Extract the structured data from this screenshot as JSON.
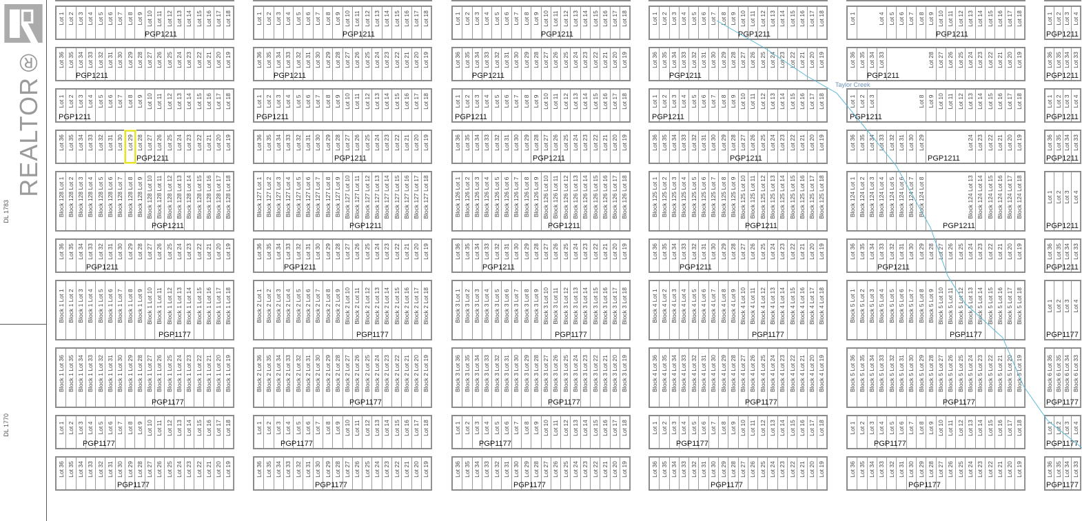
{
  "watermark": {
    "brand": "REALTOR®"
  },
  "district_lots": [
    "DL 1783",
    "DL 1770"
  ],
  "creek": {
    "label": "Taylor Creek",
    "color": "#5bb8d8"
  },
  "highlight": {
    "lot": "Lot 29",
    "plan": "PGP1211",
    "color": "#e6e22a"
  },
  "lot_labels": {
    "north_half": [
      "Lot 1",
      "Lot 2",
      "Lot 3",
      "Lot 4",
      "Lot 5",
      "Lot 6",
      "Lot 7",
      "Lot 8",
      "Lot 9",
      "Lot 10",
      "Lot 11",
      "Lot 12",
      "Lot 13",
      "Lot 14",
      "Lot 15",
      "Lot 16",
      "Lot 17",
      "Lot 18"
    ],
    "south_half": [
      "Lot 36",
      "Lot 35",
      "Lot 34",
      "Lot 33",
      "Lot 32",
      "Lot 31",
      "Lot 30",
      "Lot 29",
      "Lot 28",
      "Lot 27",
      "Lot 26",
      "Lot 25",
      "Lot 24",
      "Lot 23",
      "Lot 22",
      "Lot 21",
      "Lot 20",
      "Lot 19"
    ]
  },
  "rows": [
    {
      "half": "south_half",
      "plan": "",
      "prefixes": [
        "",
        "",
        "",
        "",
        "",
        ""
      ]
    },
    {
      "half": "north_half",
      "plan": "PGP1211",
      "prefixes": [
        "",
        "",
        "",
        "",
        "",
        ""
      ]
    },
    {
      "half": "south_half",
      "plan": "PGP1211",
      "prefixes": [
        "",
        "",
        "",
        "",
        "",
        ""
      ]
    },
    {
      "half": "north_half",
      "plan": "PGP1211",
      "prefixes": [
        "",
        "",
        "",
        "",
        "",
        ""
      ]
    },
    {
      "half": "south_half",
      "plan": "PGP1211",
      "prefixes": [
        "",
        "",
        "",
        "",
        "",
        ""
      ]
    },
    {
      "half": "north_half",
      "plan": "PGP1211",
      "prefixes": [
        "Block 128 ",
        "Block 127 ",
        "Block 126 ",
        "Block 125 ",
        "Block 124 ",
        ""
      ]
    },
    {
      "half": "south_half",
      "plan": "PGP1211",
      "prefixes": [
        "",
        "",
        "",
        "",
        "",
        ""
      ]
    },
    {
      "half": "north_half",
      "plan": "PGP1177",
      "prefixes": [
        "Block 1 ",
        "Block 2 ",
        "Block 3 ",
        "Block 4 ",
        "Block 5 ",
        ""
      ]
    },
    {
      "half": "south_half",
      "plan": "PGP1177",
      "prefixes": [
        "Block 1 ",
        "Block 2 ",
        "Block 3 ",
        "Block 4 ",
        "Block 5 ",
        "Block 6 "
      ]
    },
    {
      "half": "north_half",
      "plan": "PGP1177",
      "prefixes": [
        "",
        "",
        "",
        "",
        "",
        ""
      ]
    },
    {
      "half": "south_half",
      "plan": "PGP1177",
      "prefixes": [
        "",
        "",
        "",
        "",
        "",
        ""
      ]
    }
  ]
}
